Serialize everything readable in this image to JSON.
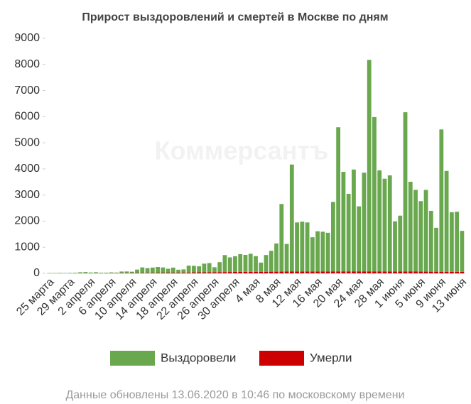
{
  "chart_data": {
    "type": "stacked_bar",
    "title": "Прирост выздоровлений и смертей в Москве по дням",
    "watermark": "Коммерсантъ",
    "footnote": "Данные обновлены 13.06.2020 в 10:46 по московскому времени",
    "categories": [
      "25 марта",
      null,
      null,
      null,
      "29 марта",
      null,
      null,
      null,
      "2 апреля",
      null,
      null,
      null,
      "6 апреля",
      null,
      null,
      null,
      "10 апреля",
      null,
      null,
      null,
      "14 апреля",
      null,
      null,
      null,
      "18 апреля",
      null,
      null,
      null,
      "22 апреля",
      null,
      null,
      null,
      "26 апреля",
      null,
      null,
      null,
      "30 апреля",
      null,
      null,
      null,
      "4 мая",
      null,
      null,
      null,
      "8 мая",
      null,
      null,
      null,
      "12 мая",
      null,
      null,
      null,
      "16 мая",
      null,
      null,
      null,
      "20 мая",
      null,
      null,
      null,
      "24 мая",
      null,
      null,
      null,
      "28 мая",
      null,
      null,
      null,
      "1 июня",
      null,
      null,
      null,
      "5 июня",
      null,
      null,
      null,
      "9 июня",
      null,
      null,
      null,
      "13 июня"
    ],
    "series": [
      {
        "name": "Выздоровели",
        "color": "#6aa84f",
        "values": [
          10,
          10,
          15,
          10,
          15,
          20,
          40,
          50,
          30,
          40,
          20,
          20,
          30,
          20,
          60,
          60,
          50,
          130,
          210,
          180,
          200,
          220,
          200,
          150,
          190,
          110,
          120,
          260,
          250,
          230,
          330,
          350,
          190,
          380,
          650,
          560,
          600,
          680,
          650,
          690,
          600,
          350,
          640,
          800,
          1080,
          2590,
          1060,
          4100,
          1880,
          1910,
          1880,
          1310,
          1540,
          1520,
          1480,
          2660,
          5520,
          3810,
          2970,
          3900,
          2490,
          3780,
          8100,
          5910,
          3870,
          3550,
          3680,
          1920,
          2140,
          6100,
          3440,
          3130,
          2700,
          3130,
          2330,
          1680,
          5450,
          3860,
          2280,
          2300,
          1570
        ]
      },
      {
        "name": "Умерли",
        "color": "#cc0000",
        "values": [
          0,
          0,
          1,
          1,
          2,
          2,
          3,
          2,
          3,
          4,
          5,
          6,
          7,
          9,
          10,
          12,
          14,
          15,
          18,
          20,
          22,
          24,
          26,
          27,
          30,
          30,
          32,
          35,
          38,
          40,
          42,
          44,
          45,
          48,
          50,
          52,
          55,
          56,
          58,
          60,
          60,
          62,
          62,
          64,
          65,
          66,
          68,
          68,
          70,
          70,
          70,
          72,
          72,
          74,
          74,
          75,
          75,
          76,
          76,
          76,
          76,
          76,
          75,
          75,
          74,
          74,
          72,
          72,
          70,
          70,
          68,
          68,
          66,
          66,
          64,
          64,
          62,
          62,
          60,
          60,
          58
        ]
      }
    ],
    "ylim": [
      0,
      9000
    ],
    "yticks": [
      0,
      1000,
      2000,
      3000,
      4000,
      5000,
      6000,
      7000,
      8000,
      9000
    ],
    "legend": "bottom"
  }
}
